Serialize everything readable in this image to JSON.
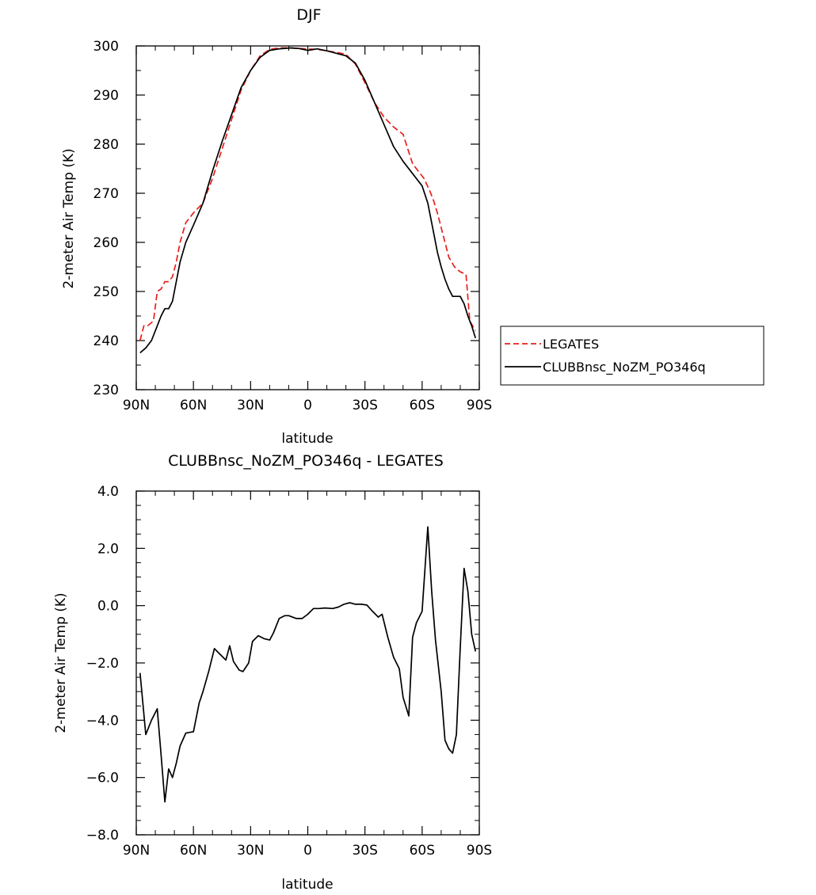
{
  "chart_data": [
    {
      "type": "line",
      "title": "DJF",
      "xlabel": "latitude",
      "ylabel": "2-meter Air Temp (K)",
      "x_tick_labels": [
        "90N",
        "60N",
        "30N",
        "0",
        "30S",
        "60S",
        "90S"
      ],
      "x_tick_values": [
        90,
        60,
        30,
        0,
        -30,
        -60,
        -90
      ],
      "xlim": [
        90,
        -90
      ],
      "ylim": [
        230,
        300
      ],
      "y_tick_labels": [
        "230",
        "240",
        "250",
        "260",
        "270",
        "280",
        "290",
        "300"
      ],
      "y_tick_values": [
        230,
        240,
        250,
        260,
        270,
        280,
        290,
        300
      ],
      "grid": false,
      "legend_position": "right",
      "series": [
        {
          "name": "LEGATES",
          "color": "#e8201c",
          "dash": "dashed",
          "x": [
            88,
            86,
            84,
            81,
            79,
            77,
            75,
            73,
            71,
            69,
            67,
            64,
            60,
            55,
            50,
            45,
            40,
            35,
            30,
            25,
            20,
            15,
            10,
            5,
            0,
            -5,
            -10,
            -15,
            -20,
            -25,
            -30,
            -35,
            -40,
            -45,
            -50,
            -55,
            -58,
            -61,
            -64,
            -66,
            -68,
            -70,
            -72,
            -74,
            -77,
            -80,
            -83,
            -85,
            -88
          ],
          "values": [
            240,
            243,
            243,
            244,
            250,
            250.5,
            252,
            252,
            253,
            256,
            260,
            264,
            266,
            268,
            273,
            279,
            285,
            291,
            295,
            298,
            299.3,
            299.6,
            299.6,
            299.5,
            299.4,
            299.3,
            299,
            298.7,
            298.3,
            296.3,
            292.5,
            288.5,
            285.5,
            283.5,
            282,
            276,
            274.5,
            273,
            270.5,
            268.5,
            266,
            263,
            260,
            257,
            255,
            254,
            253.5,
            244,
            242
          ]
        },
        {
          "name": "CLUBBnsc_NoZM_PO346q",
          "color": "#000000",
          "dash": "solid",
          "x": [
            88,
            85,
            82,
            79,
            77,
            75,
            73,
            71,
            69,
            67,
            64,
            60,
            55,
            50,
            45,
            40,
            35,
            30,
            25,
            20,
            15,
            12,
            9,
            5,
            0,
            -5,
            -10,
            -15,
            -20,
            -25,
            -30,
            -35,
            -40,
            -45,
            -50,
            -55,
            -60,
            -63,
            -66,
            -68,
            -70,
            -72,
            -74,
            -76,
            -78,
            -80,
            -82,
            -84,
            -86,
            -88
          ],
          "values": [
            237.5,
            238.5,
            240,
            243,
            245,
            246.5,
            246.5,
            248,
            252,
            256,
            260,
            263.5,
            268,
            274.5,
            280.5,
            286,
            291.5,
            295,
            297.7,
            299.1,
            299.4,
            299.5,
            299.6,
            299.5,
            299.1,
            299.4,
            299,
            298.5,
            298,
            296.5,
            293,
            288.5,
            284,
            279.5,
            276.5,
            274,
            271.5,
            268,
            262,
            258,
            255,
            252.5,
            250.5,
            249,
            249,
            249,
            247.5,
            245,
            243,
            240.5
          ]
        }
      ]
    },
    {
      "type": "line",
      "title": "CLUBBnsc_NoZM_PO346q - LEGATES",
      "xlabel": "latitude",
      "ylabel": "2-meter Air Temp (K)",
      "x_tick_labels": [
        "90N",
        "60N",
        "30N",
        "0",
        "30S",
        "60S",
        "90S"
      ],
      "x_tick_values": [
        90,
        60,
        30,
        0,
        -30,
        -60,
        -90
      ],
      "xlim": [
        90,
        -90
      ],
      "ylim": [
        -8,
        4
      ],
      "y_tick_labels": [
        "4.0",
        "2.0",
        "0.0",
        "−2.0",
        "−4.0",
        "−6.0",
        "−8.0"
      ],
      "y_tick_values": [
        4,
        2,
        0,
        -2,
        -4,
        -6,
        -8
      ],
      "grid": false,
      "series": [
        {
          "name": "",
          "color": "#000000",
          "dash": "solid",
          "x": [
            88,
            85,
            82,
            79,
            77,
            75,
            73,
            71,
            69,
            67,
            64,
            60,
            57,
            55,
            52,
            49,
            46,
            43,
            41,
            39,
            36,
            34,
            31,
            29,
            26,
            23,
            20,
            18,
            15,
            12,
            10,
            6,
            3,
            0,
            -3,
            -6,
            -9,
            -13,
            -16,
            -19,
            -22,
            -25,
            -28,
            -31,
            -34,
            -37,
            -39,
            -42,
            -45,
            -48,
            -50,
            -53,
            -55,
            -57,
            -60,
            -63,
            -65,
            -67,
            -70,
            -72,
            -74,
            -76,
            -78,
            -80,
            -82,
            -84,
            -86,
            -88
          ],
          "values": [
            -2.35,
            -4.5,
            -4,
            -3.6,
            -5.2,
            -6.85,
            -5.7,
            -6,
            -5.5,
            -4.9,
            -4.45,
            -4.4,
            -3.4,
            -3,
            -2.3,
            -1.5,
            -1.7,
            -1.9,
            -1.4,
            -1.95,
            -2.25,
            -2.3,
            -2.0,
            -1.25,
            -1.05,
            -1.15,
            -1.2,
            -0.95,
            -0.45,
            -0.35,
            -0.35,
            -0.45,
            -0.45,
            -0.3,
            -0.1,
            -0.1,
            -0.08,
            -0.1,
            -0.05,
            0.05,
            0.1,
            0.05,
            0.05,
            0.02,
            -0.2,
            -0.4,
            -0.3,
            -1.1,
            -1.8,
            -2.2,
            -3.2,
            -3.85,
            -1.1,
            -0.6,
            -0.2,
            2.75,
            0.5,
            -1.2,
            -3.0,
            -4.7,
            -5.0,
            -5.15,
            -4.5,
            -1.5,
            1.3,
            0.5,
            -1.0,
            -1.6
          ]
        }
      ]
    }
  ]
}
